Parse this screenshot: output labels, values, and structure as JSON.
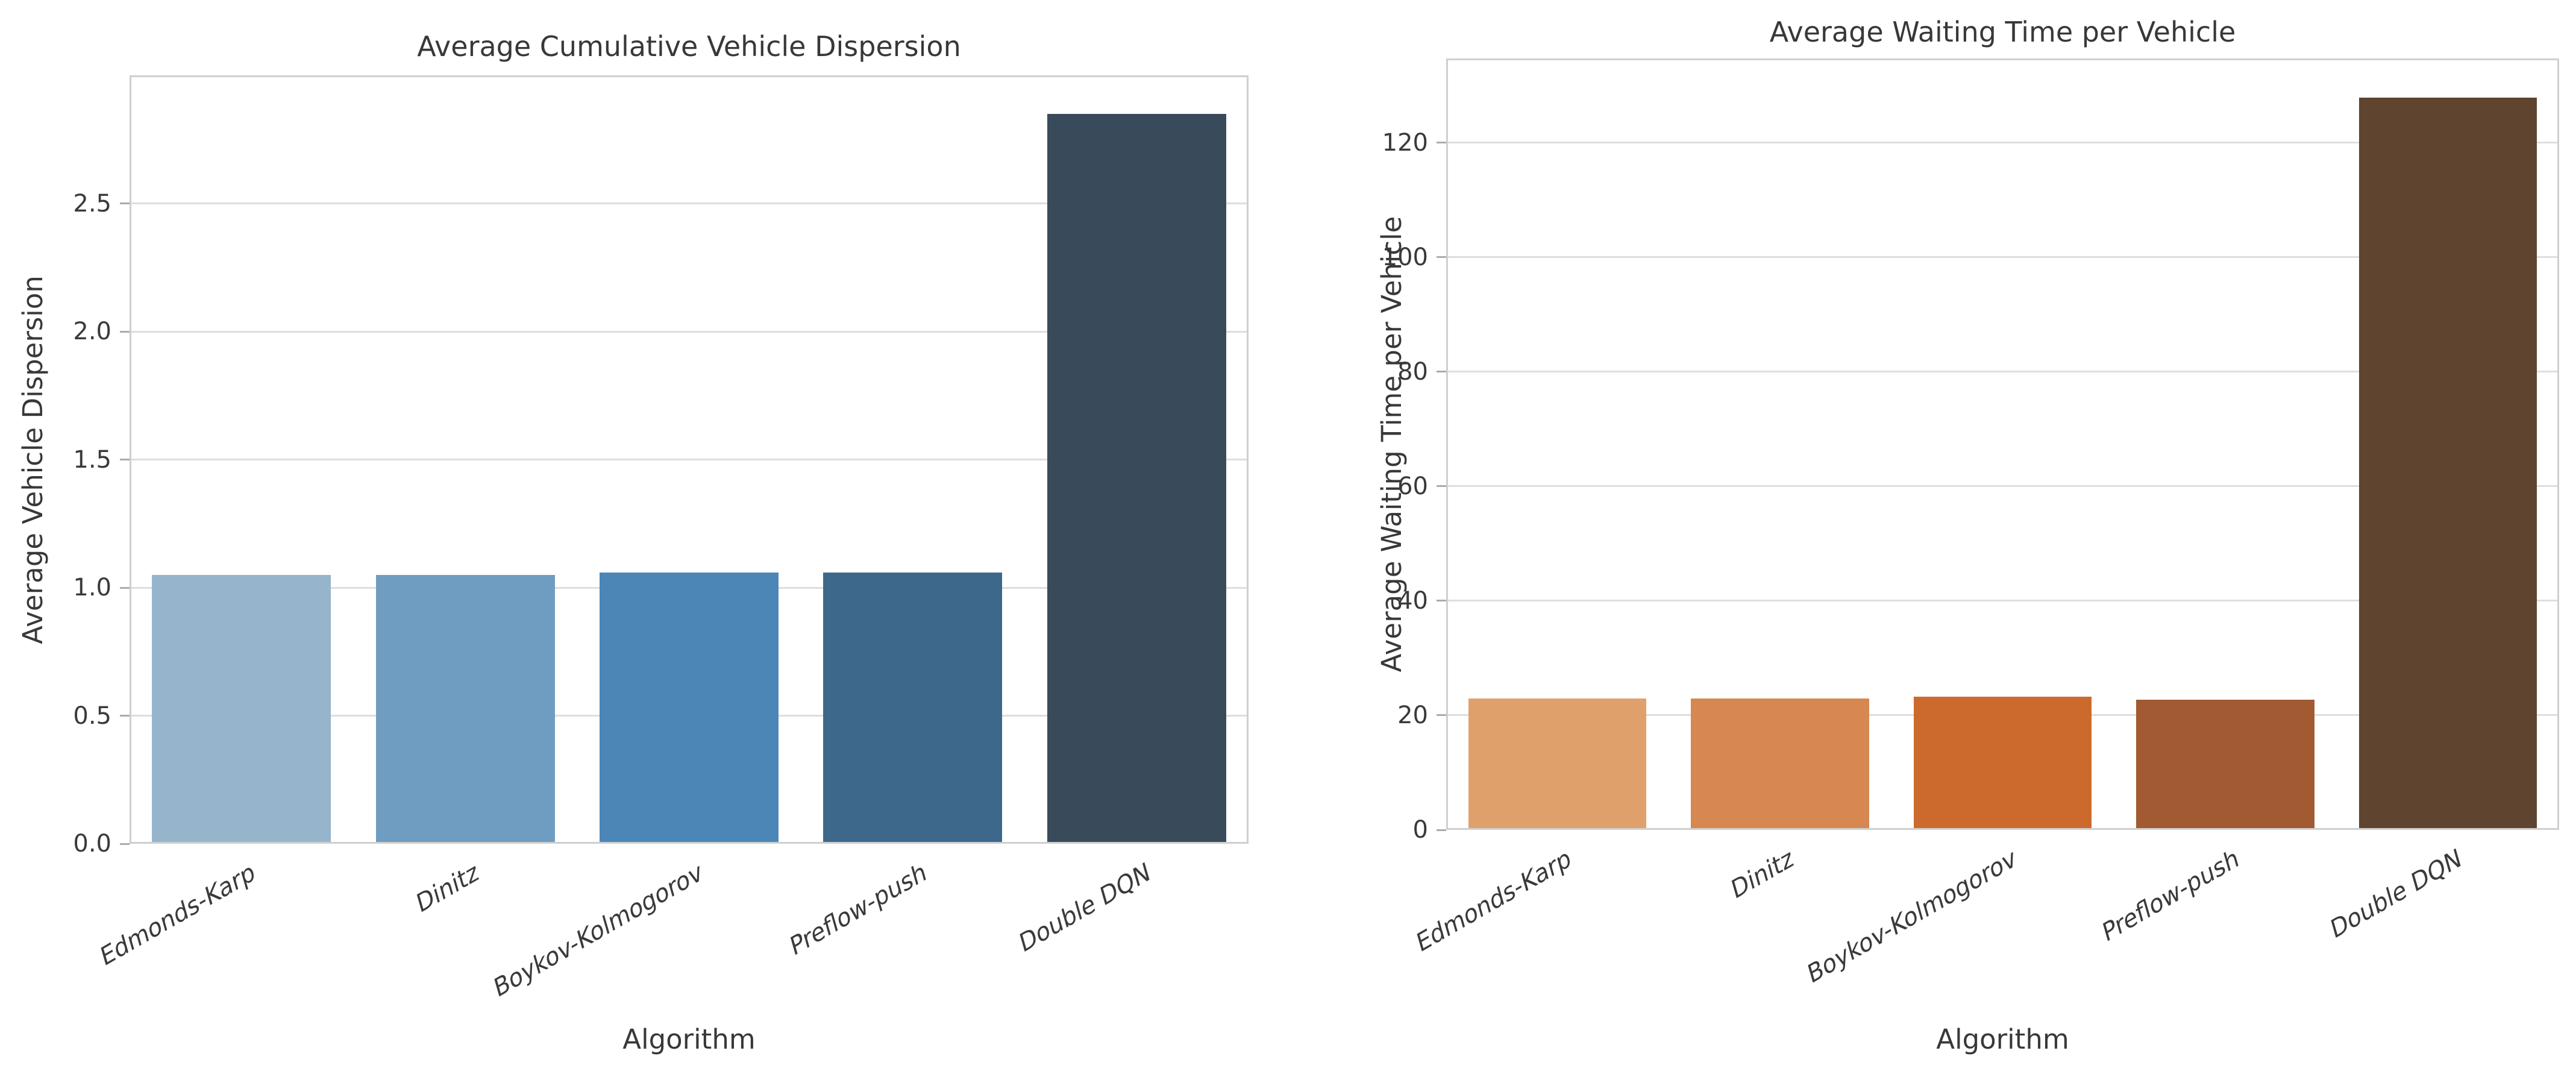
{
  "style": {
    "background": "#ffffff",
    "grid_color": "#dedede",
    "spine_color": "#cfcfcf",
    "tick_mark_color": "#ababab",
    "text_color": "#3a3a3a"
  },
  "chart_data": [
    {
      "type": "bar",
      "title": "Average Cumulative Vehicle Dispersion",
      "xlabel": "Algorithm",
      "ylabel": "Average Vehicle Dispersion",
      "categories": [
        "Edmonds-Karp",
        "Dinitz",
        "Boykov-Kolmogorov",
        "Preflow-push",
        "Double DQN"
      ],
      "values": [
        1.05,
        1.05,
        1.06,
        1.06,
        2.85
      ],
      "bar_colors": [
        "#96b5cd",
        "#6f9dc1",
        "#4b86b7",
        "#3d688c",
        "#394a5b"
      ],
      "yticks": [
        0.0,
        0.5,
        1.0,
        1.5,
        2.0,
        2.5
      ],
      "ytick_labels": [
        "0.0",
        "0.5",
        "1.0",
        "1.5",
        "2.0",
        "2.5"
      ],
      "ylim": [
        0,
        3.0
      ],
      "grid": true,
      "legend": null
    },
    {
      "type": "bar",
      "title": "Average Waiting Time per Vehicle",
      "xlabel": "Algorithm",
      "ylabel": "Average Waiting Time per Vehicle",
      "categories": [
        "Edmonds-Karp",
        "Dinitz",
        "Boykov-Kolmogorov",
        "Preflow-push",
        "Double DQN"
      ],
      "values": [
        22.9,
        22.9,
        23.3,
        22.7,
        127.9
      ],
      "bar_colors": [
        "#e0a06c",
        "#d68850",
        "#cc6a2e",
        "#a15a31",
        "#5f4430"
      ],
      "yticks": [
        0,
        20,
        40,
        60,
        80,
        100,
        120
      ],
      "ytick_labels": [
        "0",
        "20",
        "40",
        "60",
        "80",
        "100",
        "120"
      ],
      "ylim": [
        0,
        134.7
      ],
      "grid": true,
      "legend": null
    }
  ]
}
